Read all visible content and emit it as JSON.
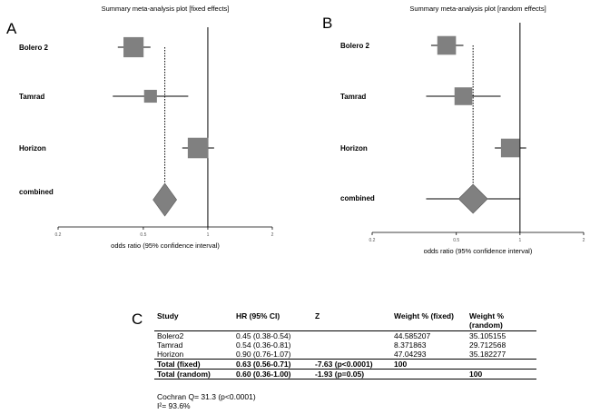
{
  "panels": {
    "a_letter": "A",
    "b_letter": "B",
    "c_letter": "C"
  },
  "colors": {
    "box": "#808080",
    "line": "#000000"
  },
  "chart_data": [
    {
      "type": "forest",
      "title": "Summary meta-analysis plot [fixed effects]",
      "xlabel": "odds ratio (95% confidence interval)",
      "x_scale": "log",
      "xlim": [
        0.2,
        2
      ],
      "ticks": [
        {
          "value": 0.2,
          "label": "0.2"
        },
        {
          "value": 0.5,
          "label": "0.5"
        },
        {
          "value": 1,
          "label": "1"
        },
        {
          "value": 2,
          "label": "2"
        }
      ],
      "pooled_line": 0.63,
      "studies": [
        {
          "name": "Bolero 2",
          "est": 0.45,
          "lo": 0.38,
          "hi": 0.54,
          "weight": 44.585207
        },
        {
          "name": "Tamrad",
          "est": 0.54,
          "lo": 0.36,
          "hi": 0.81,
          "weight": 8.371863
        },
        {
          "name": "Horizon",
          "est": 0.9,
          "lo": 0.76,
          "hi": 1.07,
          "weight": 47.04293
        }
      ],
      "combined": {
        "name": "combined",
        "est": 0.63,
        "lo": 0.56,
        "hi": 0.71
      }
    },
    {
      "type": "forest",
      "title": "Summary meta-analysis plot [random effects]",
      "xlabel": "odds ratio (95% confidence interval)",
      "x_scale": "log",
      "xlim": [
        0.2,
        2
      ],
      "ticks": [
        {
          "value": 0.2,
          "label": "0.2"
        },
        {
          "value": 0.5,
          "label": "0.5"
        },
        {
          "value": 1,
          "label": "1"
        },
        {
          "value": 2,
          "label": "2"
        }
      ],
      "pooled_line": 0.6,
      "studies": [
        {
          "name": "Bolero 2",
          "est": 0.45,
          "lo": 0.38,
          "hi": 0.54,
          "weight": 35.105155
        },
        {
          "name": "Tamrad",
          "est": 0.54,
          "lo": 0.36,
          "hi": 0.81,
          "weight": 29.712568
        },
        {
          "name": "Horizon",
          "est": 0.9,
          "lo": 0.76,
          "hi": 1.07,
          "weight": 35.182277
        }
      ],
      "combined": {
        "name": "combined",
        "est": 0.6,
        "lo": 0.36,
        "hi": 1.0
      }
    },
    {
      "type": "table",
      "columns": [
        "Study",
        "HR (95% CI)",
        "Z",
        "Weight % (fixed)",
        "Weight % (random)"
      ],
      "rows": [
        [
          "Bolero2",
          "0.45 (0.38-0.54)",
          "",
          "44.585207",
          "35.105155"
        ],
        [
          "Tamrad",
          "0.54 (0.36-0.81)",
          "",
          "8.371863",
          "29.712568"
        ],
        [
          "Horizon",
          "0.90 (0.76-1.07)",
          "",
          "47.04293",
          "35.182277"
        ],
        [
          "Total (fixed)",
          "0.63 (0.56-0.71)",
          "-7.63 (p<0.0001)",
          "100",
          ""
        ],
        [
          "Total (random)",
          "0.60 (0.36-1.00)",
          "-1.93 (p=0.05)",
          "",
          "100"
        ]
      ],
      "footnotes": [
        "Cochran Q= 31.3 (p<0.0001)",
        "I²= 93.6%"
      ]
    }
  ]
}
